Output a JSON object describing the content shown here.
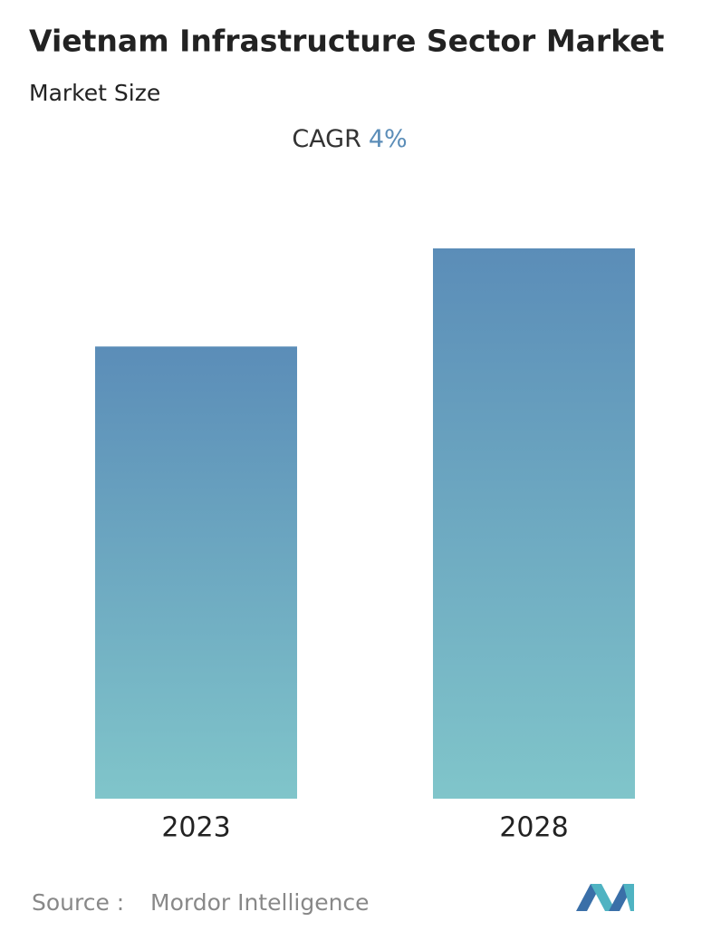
{
  "chart_data": {
    "type": "bar",
    "title": "Vietnam Infrastructure Sector Market",
    "subtitle": "Market Size",
    "cagr_label": "CAGR",
    "cagr_value": "4%",
    "categories": [
      "2023",
      "2028"
    ],
    "values": [
      100,
      121.7
    ],
    "ylim": [
      0,
      121.7
    ],
    "color_top": "#5b8db8",
    "color_bottom": "#80c5ca",
    "source_label": "Source :",
    "source": "Mordor Intelligence"
  }
}
